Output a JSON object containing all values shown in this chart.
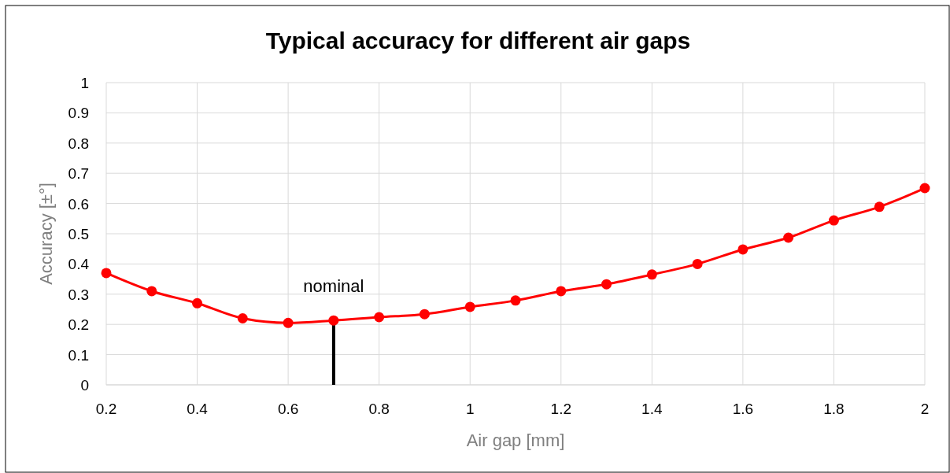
{
  "chart_data": {
    "type": "line",
    "title": "Typical accuracy for different air gaps",
    "xlabel": "Air gap  [mm]",
    "ylabel": "Accuracy [±°]",
    "x": [
      0.2,
      0.3,
      0.4,
      0.5,
      0.6,
      0.7,
      0.8,
      0.9,
      1.0,
      1.1,
      1.2,
      1.3,
      1.4,
      1.5,
      1.6,
      1.7,
      1.8,
      1.9,
      2.0
    ],
    "series": [
      {
        "color": "#ff0000",
        "values": [
          0.37,
          0.31,
          0.27,
          0.22,
          0.205,
          0.213,
          0.224,
          0.234,
          0.258,
          0.279,
          0.31,
          0.333,
          0.365,
          0.4,
          0.448,
          0.487,
          0.544,
          0.589,
          0.651
        ]
      }
    ],
    "xlim": [
      0.2,
      2
    ],
    "xticks": [
      0.2,
      0.4,
      0.6,
      0.8,
      1,
      1.2,
      1.4,
      1.6,
      1.8,
      2
    ],
    "ylim": [
      0,
      1
    ],
    "yticks": [
      0,
      0.1,
      0.2,
      0.3,
      0.4,
      0.5,
      0.6,
      0.7,
      0.8,
      0.9,
      1
    ],
    "ref_lines": [
      {
        "axis": "x",
        "value": 0.7,
        "label": "nominal",
        "color": "#000000"
      }
    ],
    "grid": true,
    "marker": "circle",
    "line_style": "solid"
  }
}
